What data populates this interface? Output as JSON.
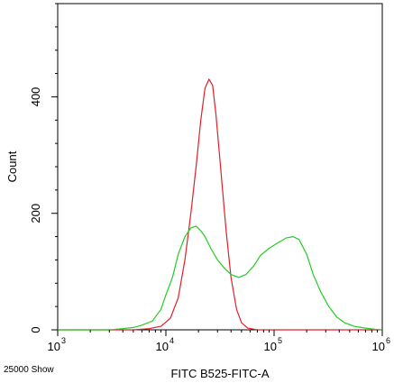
{
  "chart_data": {
    "type": "line",
    "xlabel": "FITC B525-FITC-A",
    "ylabel": "Count",
    "x_scale": "log",
    "xlim": [
      1000,
      1000000
    ],
    "ylim": [
      0,
      560
    ],
    "x_ticks": [
      {
        "value": 1000,
        "base": "10",
        "exp": "3"
      },
      {
        "value": 10000,
        "base": "10",
        "exp": "4"
      },
      {
        "value": 100000,
        "base": "10",
        "exp": "5"
      },
      {
        "value": 1000000,
        "base": "10",
        "exp": "6"
      }
    ],
    "y_ticks": [
      {
        "value": 0,
        "label": "0"
      },
      {
        "value": 200,
        "label": "200"
      },
      {
        "value": 400,
        "label": "400"
      }
    ],
    "corner_note": "25000 Show",
    "grid": false,
    "series": [
      {
        "color": "#e0202a",
        "points": [
          [
            1000,
            0
          ],
          [
            3000,
            0
          ],
          [
            5000,
            0
          ],
          [
            7000,
            2
          ],
          [
            9000,
            6
          ],
          [
            11000,
            20
          ],
          [
            13000,
            55
          ],
          [
            15000,
            120
          ],
          [
            17000,
            200
          ],
          [
            19000,
            280
          ],
          [
            21000,
            360
          ],
          [
            23000,
            415
          ],
          [
            25000,
            430
          ],
          [
            27000,
            420
          ],
          [
            29000,
            370
          ],
          [
            32000,
            280
          ],
          [
            36000,
            170
          ],
          [
            40000,
            90
          ],
          [
            45000,
            35
          ],
          [
            50000,
            12
          ],
          [
            57000,
            3
          ],
          [
            70000,
            0
          ],
          [
            1000000,
            0
          ]
        ]
      },
      {
        "color": "#22cc22",
        "points": [
          [
            1000,
            0
          ],
          [
            3000,
            0
          ],
          [
            4000,
            2
          ],
          [
            5000,
            4
          ],
          [
            6000,
            8
          ],
          [
            7500,
            15
          ],
          [
            9000,
            35
          ],
          [
            10000,
            60
          ],
          [
            11500,
            90
          ],
          [
            13000,
            130
          ],
          [
            15000,
            160
          ],
          [
            17000,
            175
          ],
          [
            19000,
            178
          ],
          [
            21000,
            170
          ],
          [
            23000,
            160
          ],
          [
            26000,
            140
          ],
          [
            30000,
            120
          ],
          [
            35000,
            105
          ],
          [
            40000,
            95
          ],
          [
            47000,
            90
          ],
          [
            55000,
            95
          ],
          [
            65000,
            110
          ],
          [
            75000,
            128
          ],
          [
            90000,
            140
          ],
          [
            110000,
            150
          ],
          [
            130000,
            158
          ],
          [
            150000,
            160
          ],
          [
            170000,
            155
          ],
          [
            200000,
            130
          ],
          [
            230000,
            95
          ],
          [
            270000,
            65
          ],
          [
            320000,
            40
          ],
          [
            380000,
            22
          ],
          [
            450000,
            12
          ],
          [
            550000,
            6
          ],
          [
            700000,
            3
          ],
          [
            850000,
            1
          ],
          [
            1000000,
            0
          ]
        ]
      }
    ]
  }
}
